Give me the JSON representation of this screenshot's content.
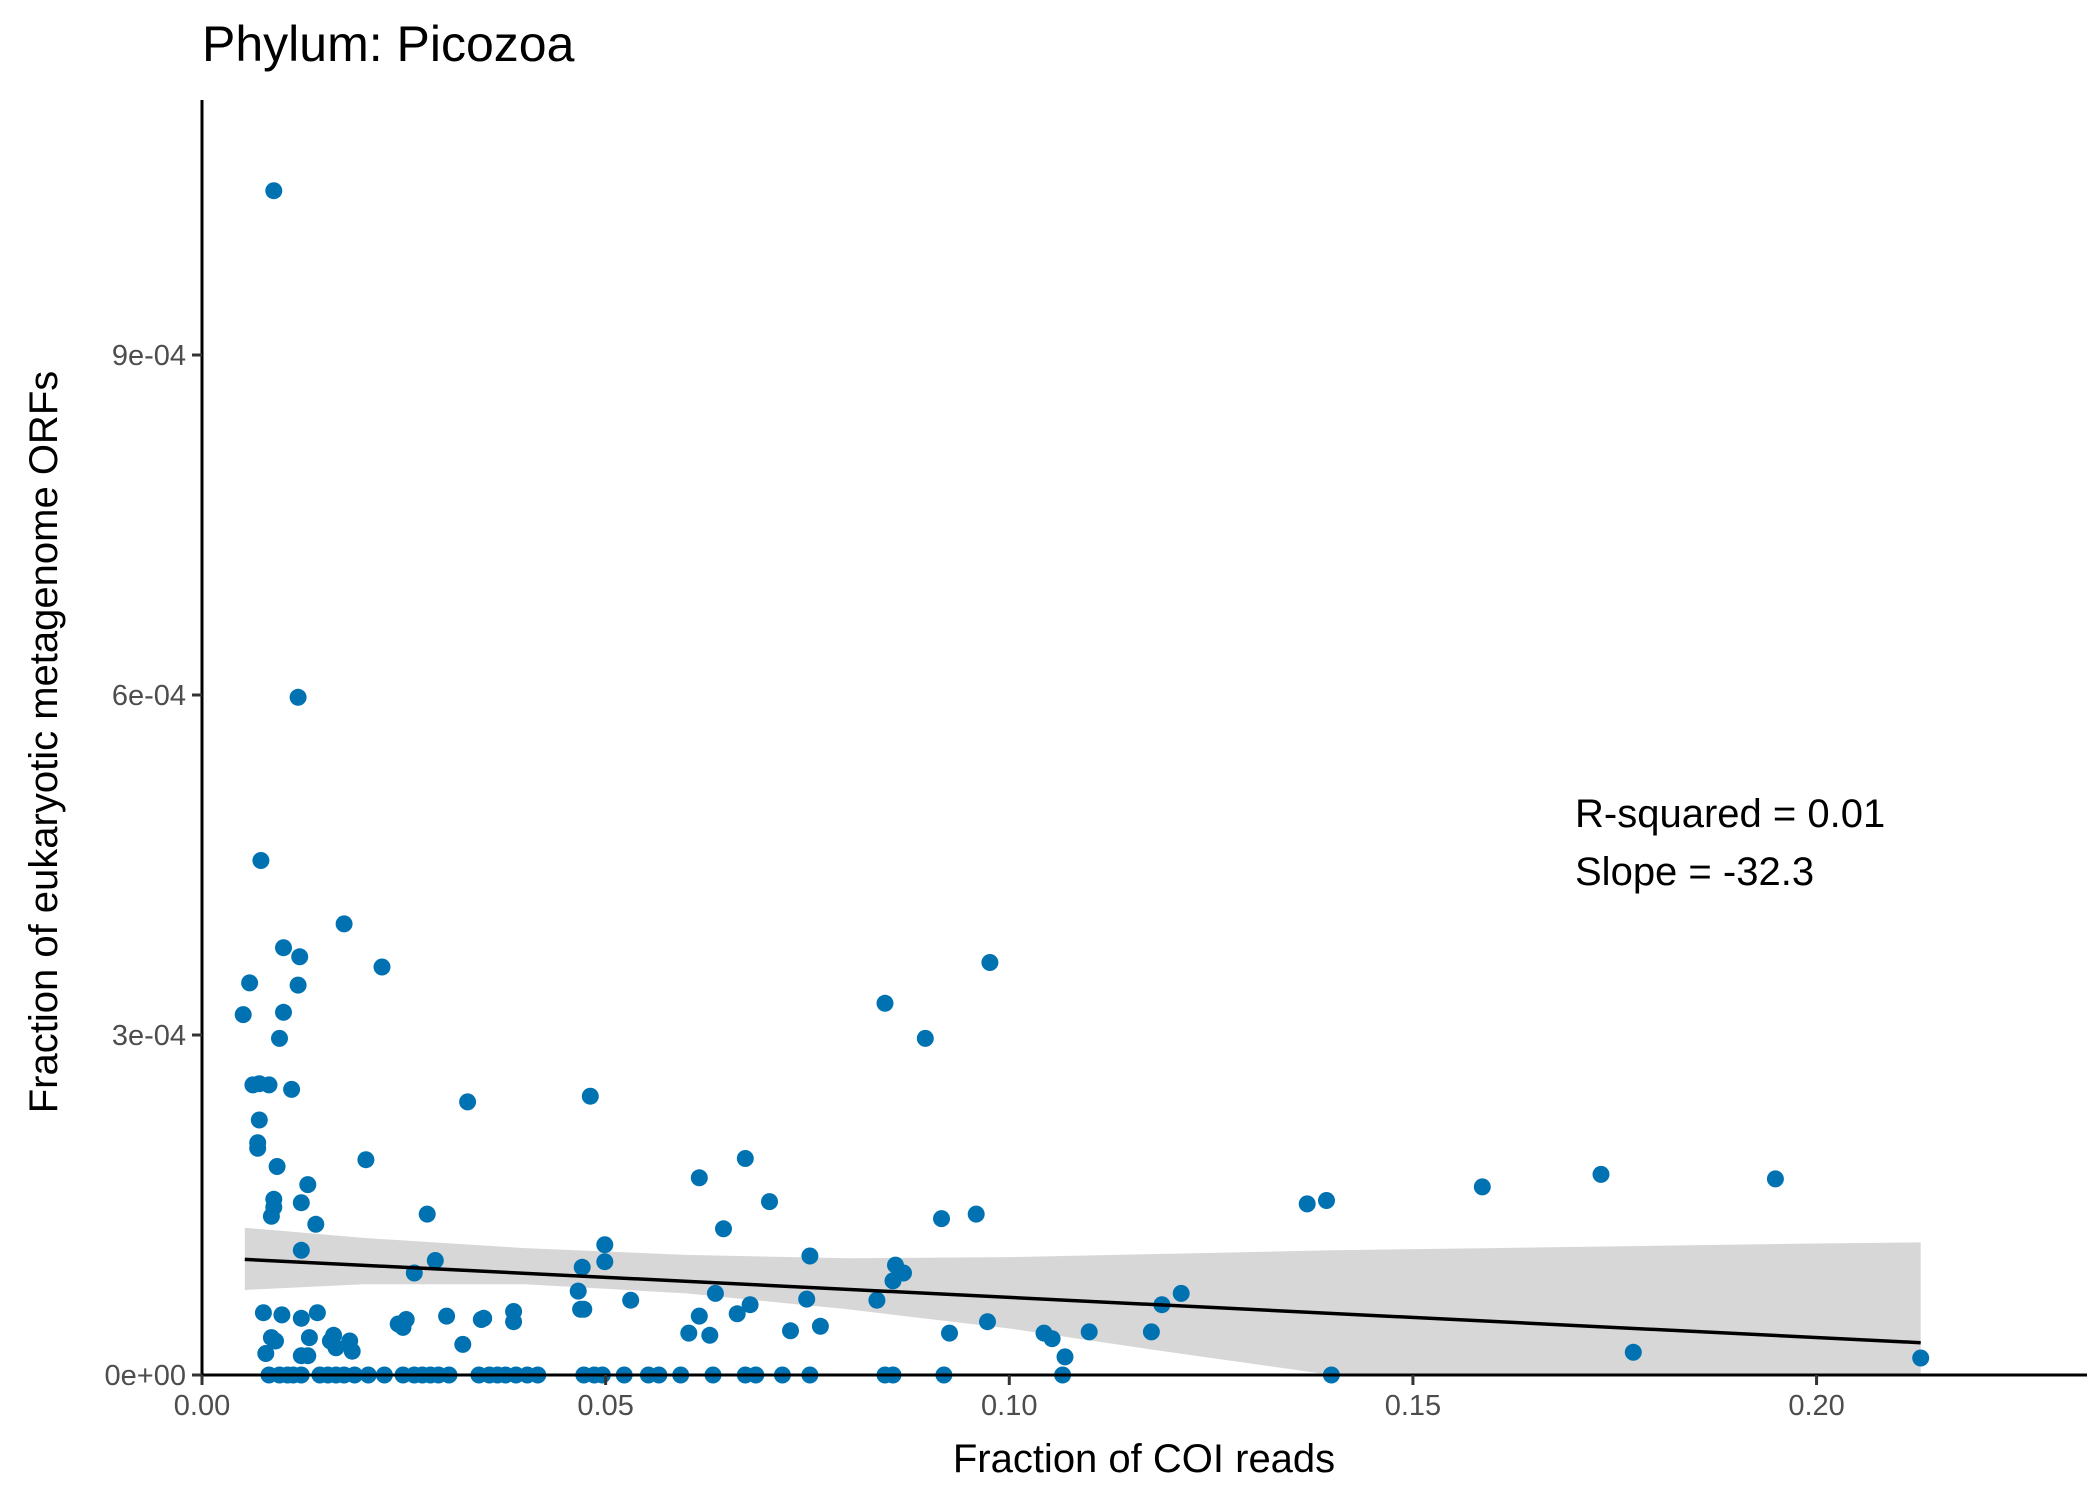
{
  "chart_data": {
    "type": "scatter",
    "title": "Phylum:  Picozoa",
    "xlabel": "Fraction of COI reads",
    "ylabel": "Fraction of eukaryotic metagenome ORFs",
    "xlim": [
      0,
      0.2335
    ],
    "ylim": [
      0,
      0.001125
    ],
    "x_ticks": [
      0,
      0.05,
      0.1,
      0.15,
      0.2
    ],
    "x_tick_labels": [
      "0.00",
      "0.05",
      "0.10",
      "0.15",
      "0.20"
    ],
    "y_ticks": [
      0,
      0.0003,
      0.0006,
      0.0009
    ],
    "y_tick_labels": [
      "0e+00",
      "3e-04",
      "6e-04",
      "9e-04"
    ],
    "grid": false,
    "legend": "none",
    "annotations": [
      "R-squared =  0.01",
      "Slope =  -32.3"
    ],
    "point_color": "#0072B2",
    "fit_line_color": "#000000",
    "ribbon_color": "#d3d3d3",
    "series": [
      {
        "points": [
          [
            0.0089,
            0.001045
          ],
          [
            0.0119,
            0.000598
          ],
          [
            0.0073,
            0.000454
          ],
          [
            0.0176,
            0.000398
          ],
          [
            0.0101,
            0.000377
          ],
          [
            0.0121,
            0.000369
          ],
          [
            0.0223,
            0.00036
          ],
          [
            0.0059,
            0.000346
          ],
          [
            0.0119,
            0.000344
          ],
          [
            0.0101,
            0.00032
          ],
          [
            0.0051,
            0.000318
          ],
          [
            0.0096,
            0.000297
          ],
          [
            0.0063,
            0.000256
          ],
          [
            0.0071,
            0.000257
          ],
          [
            0.0083,
            0.000256
          ],
          [
            0.0111,
            0.000252
          ],
          [
            0.0329,
            0.000241
          ],
          [
            0.0481,
            0.000246
          ],
          [
            0.0071,
            0.000225
          ],
          [
            0.0069,
            0.000205
          ],
          [
            0.0069,
            0.0002
          ],
          [
            0.0203,
            0.00019
          ],
          [
            0.0093,
            0.000184
          ],
          [
            0.0131,
            0.000168
          ],
          [
            0.0089,
            0.000155
          ],
          [
            0.0089,
            0.000148
          ],
          [
            0.0123,
            0.000152
          ],
          [
            0.0086,
            0.00014
          ],
          [
            0.0279,
            0.000142
          ],
          [
            0.0141,
            0.000133
          ],
          [
            0.0123,
            0.00011
          ],
          [
            0.0289,
            0.000101
          ],
          [
            0.0263,
            9e-05
          ],
          [
            0.0471,
            9.5e-05
          ],
          [
            0.0499,
            0.000115
          ],
          [
            0.0499,
            0.0001
          ],
          [
            0.0076,
            5.5e-05
          ],
          [
            0.0099,
            5.3e-05
          ],
          [
            0.0143,
            5.5e-05
          ],
          [
            0.0243,
            4.5e-05
          ],
          [
            0.0253,
            4.9e-05
          ],
          [
            0.0249,
            4.2e-05
          ],
          [
            0.0303,
            5.2e-05
          ],
          [
            0.0346,
            4.9e-05
          ],
          [
            0.0349,
            5e-05
          ],
          [
            0.0386,
            5.6e-05
          ],
          [
            0.0386,
            4.7e-05
          ],
          [
            0.0466,
            7.4e-05
          ],
          [
            0.0469,
            5.8e-05
          ],
          [
            0.0473,
            5.8e-05
          ],
          [
            0.0531,
            6.6e-05
          ],
          [
            0.0123,
            5e-05
          ],
          [
            0.0086,
            3.3e-05
          ],
          [
            0.0091,
            3e-05
          ],
          [
            0.0133,
            3.3e-05
          ],
          [
            0.0163,
            3.5e-05
          ],
          [
            0.0159,
            3e-05
          ],
          [
            0.0183,
            3e-05
          ],
          [
            0.0186,
            2.1e-05
          ],
          [
            0.0166,
            2.4e-05
          ],
          [
            0.0323,
            2.7e-05
          ],
          [
            0.0079,
            1.9e-05
          ],
          [
            0.0123,
            1.7e-05
          ],
          [
            0.0131,
            1.7e-05
          ],
          [
            0.0616,
            0.000174
          ],
          [
            0.0646,
            0.000129
          ],
          [
            0.0673,
            0.000191
          ],
          [
            0.0703,
            0.000153
          ],
          [
            0.0753,
            0.000105
          ],
          [
            0.0636,
            7.2e-05
          ],
          [
            0.0616,
            5.2e-05
          ],
          [
            0.0603,
            3.7e-05
          ],
          [
            0.0629,
            3.5e-05
          ],
          [
            0.0663,
            5.4e-05
          ],
          [
            0.0679,
            6.2e-05
          ],
          [
            0.0729,
            3.9e-05
          ],
          [
            0.0749,
            6.7e-05
          ],
          [
            0.0766,
            4.3e-05
          ],
          [
            0.0836,
            6.6e-05
          ],
          [
            0.0846,
            0.000328
          ],
          [
            0.0896,
            0.000297
          ],
          [
            0.0976,
            0.000364
          ],
          [
            0.0916,
            0.000138
          ],
          [
            0.0959,
            0.000142
          ],
          [
            0.0859,
            9.7e-05
          ],
          [
            0.0869,
            9e-05
          ],
          [
            0.0856,
            8.3e-05
          ],
          [
            0.0926,
            3.7e-05
          ],
          [
            0.0973,
            4.7e-05
          ],
          [
            0.1043,
            3.7e-05
          ],
          [
            0.1053,
            3.2e-05
          ],
          [
            0.1069,
            1.6e-05
          ],
          [
            0.1099,
            3.8e-05
          ],
          [
            0.1176,
            3.8e-05
          ],
          [
            0.1189,
            6.2e-05
          ],
          [
            0.1213,
            7.2e-05
          ],
          [
            0.1369,
            0.000151
          ],
          [
            0.1393,
            0.000154
          ],
          [
            0.1586,
            0.000166
          ],
          [
            0.1733,
            0.000177
          ],
          [
            0.1949,
            0.000173
          ],
          [
            0.1773,
            2e-05
          ],
          [
            0.2129,
            1.5e-05
          ],
          [
            0.0083,
            0.0
          ],
          [
            0.0096,
            0.0
          ],
          [
            0.0106,
            0.0
          ],
          [
            0.0113,
            0.0
          ],
          [
            0.0123,
            0.0
          ],
          [
            0.0146,
            0.0
          ],
          [
            0.0156,
            0.0
          ],
          [
            0.0166,
            0.0
          ],
          [
            0.0176,
            0.0
          ],
          [
            0.0189,
            0.0
          ],
          [
            0.0206,
            0.0
          ],
          [
            0.0226,
            0.0
          ],
          [
            0.0249,
            0.0
          ],
          [
            0.0263,
            0.0
          ],
          [
            0.0273,
            0.0
          ],
          [
            0.0283,
            0.0
          ],
          [
            0.0293,
            0.0
          ],
          [
            0.0306,
            0.0
          ],
          [
            0.0343,
            0.0
          ],
          [
            0.0356,
            0.0
          ],
          [
            0.0366,
            0.0
          ],
          [
            0.0376,
            0.0
          ],
          [
            0.0389,
            0.0
          ],
          [
            0.0403,
            0.0
          ],
          [
            0.0416,
            0.0
          ],
          [
            0.0473,
            0.0
          ],
          [
            0.0486,
            0.0
          ],
          [
            0.0496,
            0.0
          ],
          [
            0.0523,
            0.0
          ],
          [
            0.0553,
            0.0
          ],
          [
            0.0566,
            0.0
          ],
          [
            0.0593,
            0.0
          ],
          [
            0.0633,
            0.0
          ],
          [
            0.0673,
            0.0
          ],
          [
            0.0686,
            0.0
          ],
          [
            0.0719,
            0.0
          ],
          [
            0.0753,
            0.0
          ],
          [
            0.0846,
            0.0
          ],
          [
            0.0856,
            0.0
          ],
          [
            0.0919,
            0.0
          ],
          [
            0.1066,
            0.0
          ],
          [
            0.1399,
            0.0
          ]
        ]
      }
    ],
    "fit_line": {
      "x": [
        0.0053,
        0.2129
      ],
      "y": [
        0.000102,
        2.85e-05
      ]
    },
    "confidence_band": {
      "x": [
        0.0053,
        0.02,
        0.04,
        0.06,
        0.08,
        0.1,
        0.12,
        0.14,
        0.16,
        0.18,
        0.2,
        0.2129
      ],
      "upper": [
        0.00013,
        0.000121,
        0.000112,
        0.000106,
        0.000103,
        0.000104,
        0.000107,
        0.00011,
        0.000112,
        0.000114,
        0.000116,
        0.000117
      ],
      "lower": [
        7.5e-05,
        8e-05,
        8e-05,
        7.2e-05,
        5.8e-05,
        4.1e-05,
        2e-05,
        0.0,
        0.0,
        0.0,
        0.0,
        0.0
      ]
    }
  }
}
